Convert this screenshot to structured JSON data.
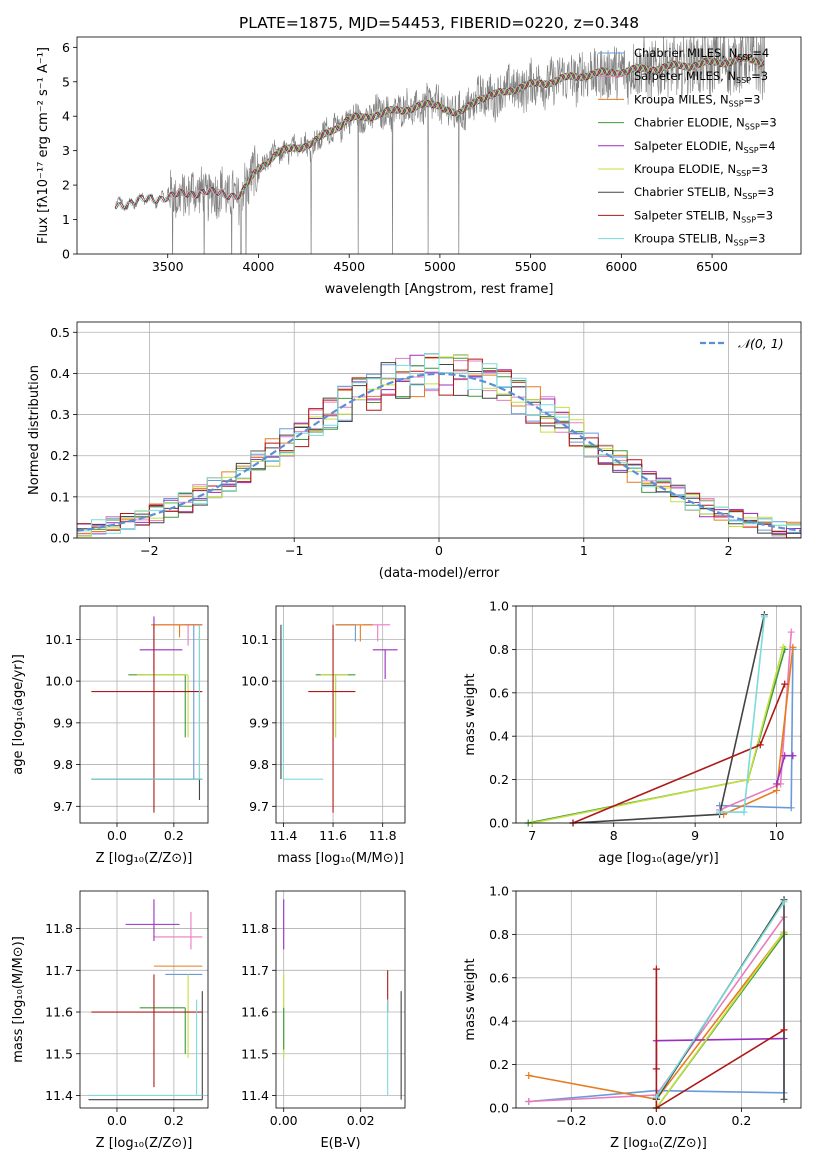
{
  "colors": {
    "chabrier_miles": "#6a9ad8",
    "salpeter_miles": "#e87cc0",
    "kroupa_miles": "#e57c1e",
    "chabrier_elodie": "#3f9a3f",
    "salpeter_elodie": "#9a2fc0",
    "kroupa_elodie": "#c6df3f",
    "chabrier_stelib": "#444444",
    "salpeter_stelib": "#b01818",
    "kroupa_stelib": "#7ddada",
    "data": "#808080",
    "gaussian": "#5b8fd8"
  },
  "chart_data": [
    {
      "id": "spectrum",
      "type": "line",
      "title": "PLATE=1875, MJD=54453, FIBERID=0220, z=0.348",
      "xlabel": "wavelength [Angstrom, rest frame]",
      "ylabel": "Flux [fλ10⁻¹⁷ erg cm⁻² s⁻¹ A⁻¹]",
      "xlim": [
        3000,
        6990
      ],
      "ylim": [
        0,
        6.3
      ],
      "xticks": [
        3500,
        4000,
        4500,
        5000,
        5500,
        6000,
        6500
      ],
      "yticks": [
        0,
        1,
        2,
        3,
        4,
        5,
        6
      ],
      "grid": false,
      "legend_position": "top-right",
      "legend": [
        {
          "label": "Chabrier MILES, N",
          "sub": "SSP",
          "tail": "=4",
          "color_key": "chabrier_miles"
        },
        {
          "label": "Salpeter MILES, N",
          "sub": "SSP",
          "tail": "=3",
          "color_key": "salpeter_miles"
        },
        {
          "label": "Kroupa MILES, N",
          "sub": "SSP",
          "tail": "=3",
          "color_key": "kroupa_miles"
        },
        {
          "label": "Chabrier ELODIE, N",
          "sub": "SSP",
          "tail": "=3",
          "color_key": "chabrier_elodie"
        },
        {
          "label": "Salpeter ELODIE, N",
          "sub": "SSP",
          "tail": "=4",
          "color_key": "salpeter_elodie"
        },
        {
          "label": "Kroupa ELODIE, N",
          "sub": "SSP",
          "tail": "=3",
          "color_key": "kroupa_elodie"
        },
        {
          "label": "Chabrier STELIB, N",
          "sub": "SSP",
          "tail": "=3",
          "color_key": "chabrier_stelib"
        },
        {
          "label": "Salpeter STELIB, N",
          "sub": "SSP",
          "tail": "=3",
          "color_key": "salpeter_stelib"
        },
        {
          "label": "Kroupa STELIB, N",
          "sub": "SSP",
          "tail": "=3",
          "color_key": "kroupa_stelib"
        }
      ],
      "continuum": {
        "wavelength": [
          3210,
          3250,
          3300,
          3400,
          3500,
          3600,
          3700,
          3800,
          3900,
          4000,
          4100,
          4200,
          4300,
          4400,
          4500,
          4600,
          4700,
          4800,
          4900,
          5000,
          5100,
          5200,
          5300,
          5400,
          5500,
          5600,
          5700,
          5800,
          5900,
          6000,
          6100,
          6200,
          6300,
          6400,
          6500,
          6600,
          6700,
          6780
        ],
        "flux": [
          1.4,
          1.45,
          1.5,
          1.6,
          1.65,
          1.75,
          1.8,
          1.75,
          1.7,
          2.5,
          2.9,
          3.1,
          3.2,
          3.6,
          3.9,
          4.0,
          4.1,
          4.2,
          4.3,
          4.35,
          4.0,
          4.5,
          4.6,
          4.8,
          4.9,
          5.0,
          5.1,
          5.2,
          5.25,
          5.3,
          5.35,
          5.4,
          5.45,
          5.5,
          5.55,
          5.6,
          5.65,
          5.6
        ]
      }
    },
    {
      "id": "residuals",
      "type": "line",
      "xlabel": "(data-model)/error",
      "ylabel": "Normed distribution",
      "xlim": [
        -2.5,
        2.5
      ],
      "ylim": [
        0,
        0.525
      ],
      "xticks": [
        -2,
        -1,
        0,
        1,
        2
      ],
      "yticks": [
        0.0,
        0.1,
        0.2,
        0.3,
        0.4,
        0.5
      ],
      "grid": true,
      "legend_position": "top-right",
      "legend": [
        {
          "label": "𝒩(0, 1)",
          "color_key": "gaussian"
        }
      ],
      "gaussian": {
        "mean": 0,
        "sigma": 1
      }
    },
    {
      "id": "age_vs_Z",
      "type": "scatter",
      "xlabel": "Z [log₁₀(Z/Z⊙)]",
      "ylabel": "age  [log₁₀(age/yr)]",
      "xlim": [
        -0.13,
        0.32
      ],
      "ylim": [
        9.66,
        10.18
      ],
      "xticks": [
        0.0,
        0.2
      ],
      "yticks": [
        9.7,
        9.8,
        9.9,
        10.0,
        10.1
      ],
      "grid": true,
      "points": [
        {
          "color_key": "chabrier_miles",
          "x": 0.27,
          "xerr": [
            0.03,
            0.03
          ],
          "y": 10.135,
          "yerr": [
            0.37,
            0.0
          ]
        },
        {
          "color_key": "salpeter_miles",
          "x": 0.25,
          "xerr": [
            0.12,
            0.05
          ],
          "y": 10.135,
          "yerr": [
            0.05,
            0.0
          ]
        },
        {
          "color_key": "kroupa_miles",
          "x": 0.22,
          "xerr": [
            0.1,
            0.08
          ],
          "y": 10.135,
          "yerr": [
            0.03,
            0.0
          ]
        },
        {
          "color_key": "chabrier_elodie",
          "x": 0.24,
          "xerr": [
            0.2,
            0.0
          ],
          "y": 10.015,
          "yerr": [
            0.15,
            0.0
          ]
        },
        {
          "color_key": "salpeter_elodie",
          "x": 0.13,
          "xerr": [
            0.05,
            0.1
          ],
          "y": 10.075,
          "yerr": [
            0.05,
            0.08
          ]
        },
        {
          "color_key": "kroupa_elodie",
          "x": 0.25,
          "xerr": [
            0.18,
            0.0
          ],
          "y": 10.015,
          "yerr": [
            0.15,
            0.0
          ]
        },
        {
          "color_key": "chabrier_stelib",
          "x": 0.29,
          "xerr": [
            0.38,
            0.01
          ],
          "y": 9.765,
          "yerr": [
            0.05,
            0.37
          ]
        },
        {
          "color_key": "salpeter_stelib",
          "x": 0.13,
          "xerr": [
            0.22,
            0.17
          ],
          "y": 9.975,
          "yerr": [
            0.29,
            0.16
          ]
        },
        {
          "color_key": "kroupa_stelib",
          "x": 0.29,
          "xerr": [
            0.38,
            0.01
          ],
          "y": 9.765,
          "yerr": [
            0.0,
            0.37
          ]
        }
      ]
    },
    {
      "id": "age_vs_mass",
      "type": "scatter",
      "xlabel": "mass [log₁₀(M/M⊙)]",
      "xlim": [
        11.37,
        11.89
      ],
      "ylim": [
        9.66,
        10.18
      ],
      "xticks": [
        11.4,
        11.6,
        11.8
      ],
      "yticks": [
        9.7,
        9.8,
        9.9,
        10.0,
        10.1
      ],
      "grid": true,
      "points": [
        {
          "color_key": "chabrier_miles",
          "x": 11.69,
          "xerr": [
            0.08,
            0.0
          ],
          "y": 10.135,
          "yerr": [
            0.04,
            0.0
          ]
        },
        {
          "color_key": "salpeter_miles",
          "x": 11.78,
          "xerr": [
            0.06,
            0.05
          ],
          "y": 10.135,
          "yerr": [
            0.04,
            0.0
          ]
        },
        {
          "color_key": "kroupa_miles",
          "x": 11.71,
          "xerr": [
            0.1,
            0.05
          ],
          "y": 10.135,
          "yerr": [
            0.04,
            0.0
          ]
        },
        {
          "color_key": "chabrier_elodie",
          "x": 11.61,
          "xerr": [
            0.08,
            0.08
          ],
          "y": 10.015,
          "yerr": [
            0.15,
            0.0
          ]
        },
        {
          "color_key": "salpeter_elodie",
          "x": 11.81,
          "xerr": [
            0.05,
            0.05
          ],
          "y": 10.075,
          "yerr": [
            0.07,
            0.0
          ]
        },
        {
          "color_key": "kroupa_elodie",
          "x": 11.61,
          "xerr": [
            0.06,
            0.05
          ],
          "y": 10.015,
          "yerr": [
            0.15,
            0.0
          ]
        },
        {
          "color_key": "chabrier_stelib",
          "x": 11.39,
          "xerr": [
            0.0,
            0.0
          ],
          "y": 9.765,
          "yerr": [
            0.0,
            0.37
          ]
        },
        {
          "color_key": "salpeter_stelib",
          "x": 11.6,
          "xerr": [
            0.1,
            0.09
          ],
          "y": 9.975,
          "yerr": [
            0.29,
            0.16
          ]
        },
        {
          "color_key": "kroupa_stelib",
          "x": 11.4,
          "xerr": [
            0.0,
            0.16
          ],
          "y": 9.765,
          "yerr": [
            0.0,
            0.37
          ]
        }
      ]
    },
    {
      "id": "weight_vs_age",
      "type": "line",
      "xlabel": "age  [log₁₀(age/yr)]",
      "ylabel": "mass weight",
      "xlim": [
        6.8,
        10.3
      ],
      "ylim": [
        0,
        1.0
      ],
      "xticks": [
        7,
        8,
        9,
        10
      ],
      "yticks": [
        0.0,
        0.2,
        0.4,
        0.6,
        0.8,
        1.0
      ],
      "grid": true,
      "series": [
        {
          "color_key": "chabrier_miles",
          "x": [
            9.3,
            10.18,
            10.2
          ],
          "y": [
            0.08,
            0.07,
            0.8
          ]
        },
        {
          "color_key": "salpeter_miles",
          "x": [
            9.3,
            10.05,
            10.18
          ],
          "y": [
            0.06,
            0.18,
            0.88
          ]
        },
        {
          "color_key": "kroupa_miles",
          "x": [
            9.35,
            10.0,
            10.2
          ],
          "y": [
            0.04,
            0.15,
            0.81
          ]
        },
        {
          "color_key": "chabrier_elodie",
          "x": [
            6.95,
            9.65,
            10.1
          ],
          "y": [
            0.0,
            0.2,
            0.8
          ]
        },
        {
          "color_key": "salpeter_elodie",
          "x": [
            10.0,
            10.1,
            10.2
          ],
          "y": [
            0.18,
            0.31,
            0.31
          ]
        },
        {
          "color_key": "kroupa_elodie",
          "x": [
            7.0,
            9.65,
            10.08
          ],
          "y": [
            0.0,
            0.2,
            0.81
          ]
        },
        {
          "color_key": "chabrier_stelib",
          "x": [
            7.5,
            9.3,
            9.85
          ],
          "y": [
            0.0,
            0.04,
            0.96
          ]
        },
        {
          "color_key": "salpeter_stelib",
          "x": [
            7.5,
            9.8,
            10.1
          ],
          "y": [
            0.0,
            0.36,
            0.64
          ]
        },
        {
          "color_key": "kroupa_stelib",
          "x": [
            9.3,
            9.6,
            9.85
          ],
          "y": [
            0.05,
            0.05,
            0.95
          ]
        }
      ]
    },
    {
      "id": "mass_vs_Z",
      "type": "scatter",
      "xlabel": "Z [log₁₀(Z/Z⊙)]",
      "ylabel": "mass [log₁₀(M/M⊙)]",
      "xlim": [
        -0.13,
        0.32
      ],
      "ylim": [
        11.37,
        11.89
      ],
      "xticks": [
        0.0,
        0.2
      ],
      "yticks": [
        11.4,
        11.5,
        11.6,
        11.7,
        11.8
      ],
      "grid": true,
      "points": [
        {
          "color_key": "chabrier_miles",
          "x": 0.27,
          "xerr": [
            0.1,
            0.03
          ],
          "y": 11.69,
          "yerr": [
            0.0,
            0.0
          ]
        },
        {
          "color_key": "salpeter_miles",
          "x": 0.26,
          "xerr": [
            0.13,
            0.04
          ],
          "y": 11.78,
          "yerr": [
            0.03,
            0.06
          ]
        },
        {
          "color_key": "kroupa_miles",
          "x": 0.24,
          "xerr": [
            0.11,
            0.06
          ],
          "y": 11.71,
          "yerr": [
            0.0,
            0.0
          ]
        },
        {
          "color_key": "chabrier_elodie",
          "x": 0.24,
          "xerr": [
            0.16,
            0.0
          ],
          "y": 11.61,
          "yerr": [
            0.11,
            0.0
          ]
        },
        {
          "color_key": "salpeter_elodie",
          "x": 0.13,
          "xerr": [
            0.1,
            0.09
          ],
          "y": 11.81,
          "yerr": [
            0.04,
            0.06
          ]
        },
        {
          "color_key": "kroupa_elodie",
          "x": 0.25,
          "xerr": [
            0.0,
            0.0
          ],
          "y": 11.61,
          "yerr": [
            0.12,
            0.08
          ]
        },
        {
          "color_key": "chabrier_stelib",
          "x": 0.3,
          "xerr": [
            0.4,
            0.0
          ],
          "y": 11.39,
          "yerr": [
            0.0,
            0.26
          ]
        },
        {
          "color_key": "salpeter_stelib",
          "x": 0.13,
          "xerr": [
            0.22,
            0.17
          ],
          "y": 11.6,
          "yerr": [
            0.18,
            0.09
          ]
        },
        {
          "color_key": "kroupa_stelib",
          "x": 0.28,
          "xerr": [
            0.38,
            0.02
          ],
          "y": 11.4,
          "yerr": [
            0.0,
            0.23
          ]
        }
      ]
    },
    {
      "id": "mass_vs_ebv",
      "type": "scatter",
      "xlabel": "E(B-V)",
      "xlim": [
        -0.002,
        0.0315
      ],
      "ylim": [
        11.37,
        11.89
      ],
      "xticks": [
        0.0,
        0.02
      ],
      "yticks": [
        11.4,
        11.5,
        11.6,
        11.7,
        11.8
      ],
      "grid": true,
      "points": [
        {
          "color_key": "salpeter_elodie",
          "x": 0.0,
          "y": 11.81,
          "yerr": [
            0.06,
            0.06
          ]
        },
        {
          "color_key": "kroupa_elodie",
          "x": 0.0,
          "y": 11.61,
          "yerr": [
            0.12,
            0.08
          ]
        },
        {
          "color_key": "chabrier_elodie",
          "x": 0.0,
          "y": 11.61,
          "yerr": [
            0.1,
            0.0
          ]
        },
        {
          "color_key": "salpeter_stelib",
          "x": 0.027,
          "y": 11.6,
          "yerr": [
            0.0,
            0.1
          ]
        },
        {
          "color_key": "kroupa_stelib",
          "x": 0.027,
          "y": 11.4,
          "yerr": [
            0.0,
            0.23
          ]
        },
        {
          "color_key": "chabrier_stelib",
          "x": 0.0305,
          "y": 11.39,
          "yerr": [
            0.0,
            0.26
          ]
        }
      ]
    },
    {
      "id": "weight_vs_Z",
      "type": "line",
      "xlabel": "Z [log₁₀(Z/Z⊙)]",
      "ylabel": "mass weight",
      "xlim": [
        -0.33,
        0.34
      ],
      "ylim": [
        0,
        1.0
      ],
      "xticks": [
        -0.2,
        0.0,
        0.2
      ],
      "yticks": [
        0.0,
        0.2,
        0.4,
        0.6,
        0.8,
        1.0
      ],
      "grid": true,
      "series": [
        {
          "color_key": "chabrier_miles",
          "x": [
            -0.3,
            0.0,
            0.3,
            0.3
          ],
          "y": [
            0.03,
            0.08,
            0.07,
            0.8
          ]
        },
        {
          "color_key": "salpeter_miles",
          "x": [
            -0.3,
            0.0,
            0.3
          ],
          "y": [
            0.03,
            0.06,
            0.88
          ]
        },
        {
          "color_key": "kroupa_miles",
          "x": [
            -0.3,
            0.0,
            0.3
          ],
          "y": [
            0.15,
            0.04,
            0.81
          ]
        },
        {
          "color_key": "chabrier_elodie",
          "x": [
            0.0,
            0.3
          ],
          "y": [
            0.0,
            0.8
          ]
        },
        {
          "color_key": "salpeter_elodie",
          "x": [
            0.0,
            0.0,
            0.3
          ],
          "y": [
            0.18,
            0.31,
            0.32
          ]
        },
        {
          "color_key": "kroupa_elodie",
          "x": [
            0.0,
            0.3
          ],
          "y": [
            0.0,
            0.81
          ]
        },
        {
          "color_key": "chabrier_stelib",
          "x": [
            0.0,
            0.3,
            0.3
          ],
          "y": [
            0.04,
            0.96,
            0.04
          ]
        },
        {
          "color_key": "salpeter_stelib",
          "x": [
            0.0,
            0.0,
            0.0,
            0.3
          ],
          "y": [
            0.64,
            0.18,
            0.0,
            0.36
          ]
        },
        {
          "color_key": "kroupa_stelib",
          "x": [
            0.0,
            0.3
          ],
          "y": [
            0.05,
            0.95
          ]
        }
      ]
    }
  ]
}
